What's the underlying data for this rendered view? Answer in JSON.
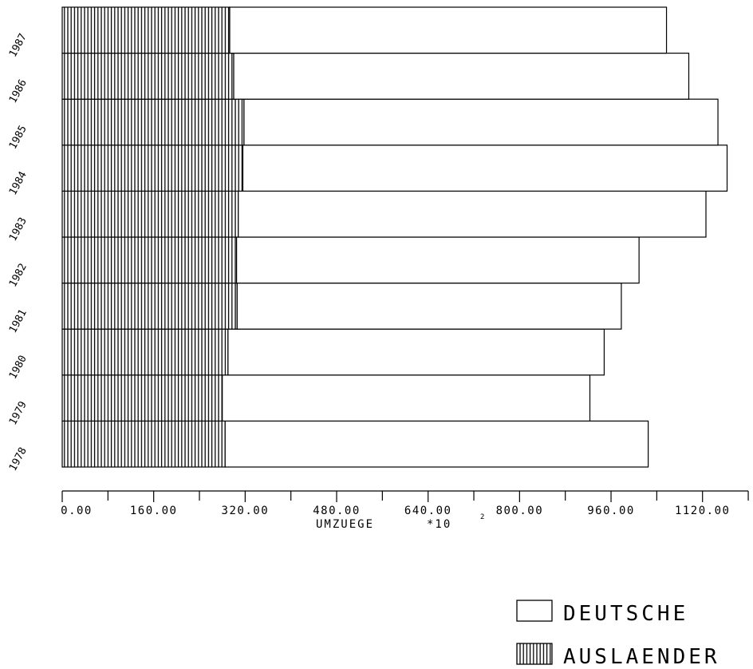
{
  "chart_data": {
    "type": "bar",
    "orientation": "horizontal",
    "stacked": true,
    "categories": [
      "1978",
      "1979",
      "1980",
      "1981",
      "1982",
      "1983",
      "1984",
      "1985",
      "1986",
      "1987"
    ],
    "series": [
      {
        "name": "AUSLAENDER",
        "pattern": "vertical-hatch",
        "values": [
          285,
          280,
          290,
          306,
          305,
          308,
          316,
          318,
          300,
          293
        ]
      },
      {
        "name": "DEUTSCHE",
        "pattern": "none",
        "values": [
          740,
          643,
          658,
          672,
          704,
          818,
          847,
          829,
          796,
          764
        ]
      }
    ],
    "xlabel": "UMZUEGE",
    "xlabel_multiplier": "*10",
    "xlabel_exponent": "2",
    "xlim": [
      0,
      1200
    ],
    "xticks": [
      "0.00",
      "160.00",
      "320.00",
      "480.00",
      "640.00",
      "800.00",
      "960.00",
      "1120.00"
    ],
    "legend_position": "bottom-right",
    "grid": false
  }
}
